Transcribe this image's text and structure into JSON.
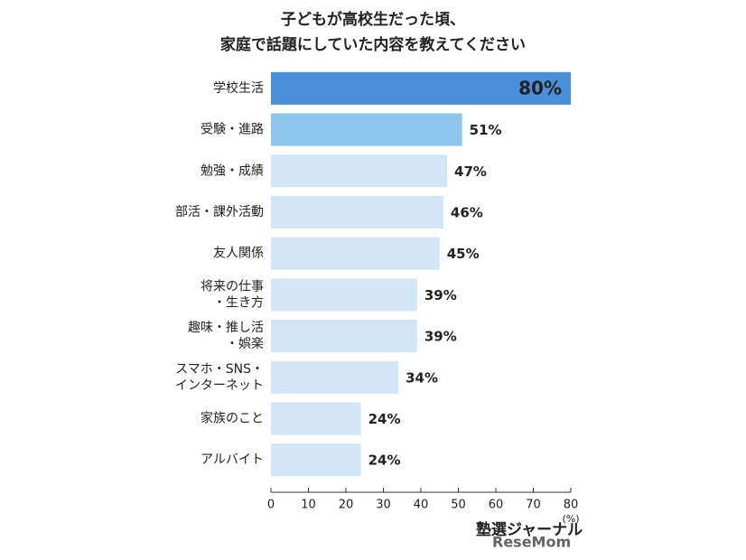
{
  "chart_data": {
    "type": "barh",
    "title": [
      "子どもが高校生だった頃、",
      "家庭で話題にしていた内容を教えてください"
    ],
    "categories": [
      "学校生活",
      "受験・進路",
      "勉強・成績",
      "部活・課外活動",
      "友人関係",
      [
        "将来の仕事",
        "・生き方"
      ],
      [
        "趣味・推し活",
        "・娯楽"
      ],
      [
        "スマホ・SNS・",
        "インターネット"
      ],
      "家族のこと",
      "アルバイト"
    ],
    "values": [
      80,
      51,
      47,
      46,
      45,
      39,
      39,
      34,
      24,
      24
    ],
    "value_labels": [
      "80%",
      "51%",
      "47%",
      "46%",
      "45%",
      "39%",
      "39%",
      "34%",
      "24%",
      "24%"
    ],
    "colors": [
      "#4a90d9",
      "#8ec5ee",
      "#d3e6f8",
      "#d3e6f8",
      "#d3e6f8",
      "#d3e6f8",
      "#d3e6f8",
      "#d3e6f8",
      "#d3e6f8",
      "#d3e6f8"
    ],
    "xlim": [
      0,
      80
    ],
    "xticks": [
      0,
      10,
      20,
      30,
      40,
      50,
      60,
      70,
      80
    ],
    "x_unit": "(%)",
    "watermark": [
      "塾選ジャーナル",
      "ReseMom"
    ]
  }
}
